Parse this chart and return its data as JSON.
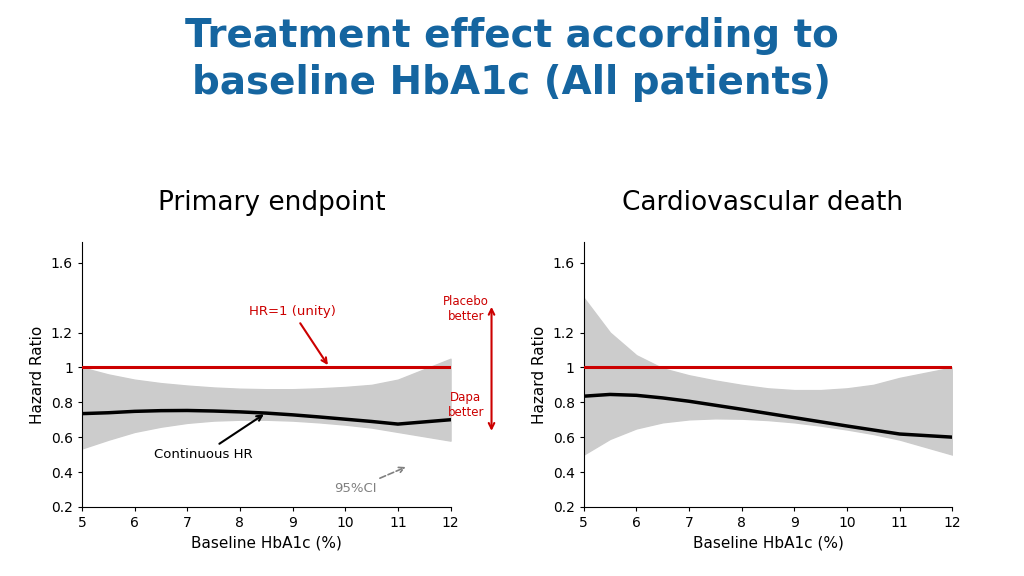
{
  "title": "Treatment effect according to\nbaseline HbA1c (All patients)",
  "title_color": "#1565a0",
  "title_fontsize": 28,
  "subtitle_left": "Primary endpoint",
  "subtitle_right": "Cardiovascular death",
  "subtitle_fontsize": 19,
  "xlabel": "Baseline HbA1c (%)",
  "ylabel": "Hazard Ratio",
  "xlim": [
    5,
    12
  ],
  "ylim": [
    0.2,
    1.72
  ],
  "yticks": [
    0.2,
    0.4,
    0.6,
    0.8,
    1.0,
    1.2,
    1.6
  ],
  "ytick_labels": [
    "0.2",
    "0.4",
    "0.6",
    "0.8",
    "1",
    "1.2",
    "1.6"
  ],
  "xticks": [
    5,
    6,
    7,
    8,
    9,
    10,
    11,
    12
  ],
  "hr_unity": 1.0,
  "hr_unity_color": "#cc0000",
  "ci_color": "#cccccc",
  "line_color": "#000000",
  "annotation_color": "#cc0000",
  "background_color": "#ffffff",
  "left_hr": [
    0.735,
    0.74,
    0.748,
    0.752,
    0.753,
    0.75,
    0.745,
    0.738,
    0.728,
    0.716,
    0.703,
    0.69,
    0.675,
    0.7
  ],
  "left_ci_lower": [
    0.535,
    0.585,
    0.63,
    0.66,
    0.682,
    0.695,
    0.7,
    0.7,
    0.695,
    0.685,
    0.672,
    0.655,
    0.63,
    0.58
  ],
  "left_ci_upper": [
    1.0,
    0.96,
    0.93,
    0.91,
    0.896,
    0.885,
    0.878,
    0.875,
    0.875,
    0.88,
    0.888,
    0.9,
    0.93,
    1.05
  ],
  "right_hr": [
    0.835,
    0.845,
    0.84,
    0.825,
    0.806,
    0.783,
    0.76,
    0.736,
    0.712,
    0.688,
    0.664,
    0.641,
    0.618,
    0.6
  ],
  "right_ci_lower": [
    0.5,
    0.59,
    0.65,
    0.685,
    0.702,
    0.708,
    0.706,
    0.698,
    0.685,
    0.666,
    0.644,
    0.618,
    0.586,
    0.5
  ],
  "right_ci_upper": [
    1.4,
    1.2,
    1.07,
    0.995,
    0.955,
    0.925,
    0.9,
    0.88,
    0.87,
    0.87,
    0.88,
    0.9,
    0.94,
    1.0
  ],
  "x_vals": [
    5.0,
    5.5,
    6.0,
    6.5,
    7.0,
    7.5,
    8.0,
    8.5,
    9.0,
    9.5,
    10.0,
    10.5,
    11.0,
    12.0
  ]
}
